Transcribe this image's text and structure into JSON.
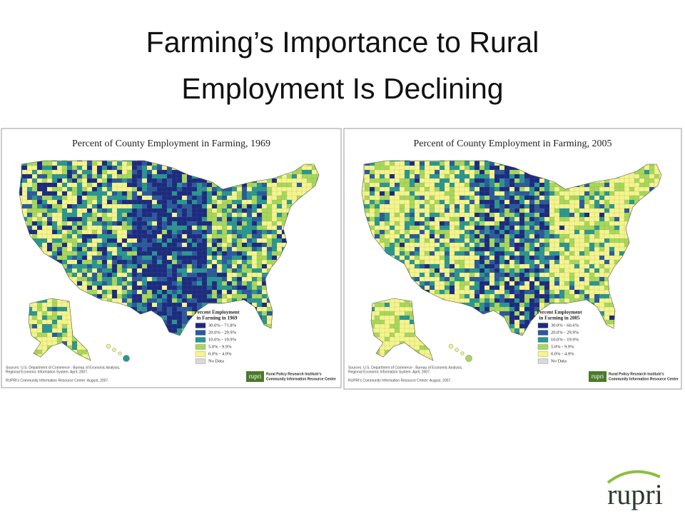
{
  "title": {
    "lines": [
      "Farming’s Importance to Rural",
      "Employment Is Declining"
    ]
  },
  "maps": [
    {
      "title": "Percent of County Employment in Farming, 1969",
      "legend": {
        "title": [
          "Percent Employment",
          "in Farming in 1969"
        ],
        "items": [
          {
            "label": "30.0% - 71.8%",
            "color": "#1c2a80"
          },
          {
            "label": "20.0% - 29.9%",
            "color": "#2b5a9c"
          },
          {
            "label": "10.0% - 19.9%",
            "color": "#2a9690"
          },
          {
            "label": "5.0% - 9.9%",
            "color": "#a8d85a"
          },
          {
            "label": "0.0% - 4.9%",
            "color": "#f6f58c"
          },
          {
            "label": "No Data",
            "color": "#d9d9d9"
          }
        ]
      },
      "sources": [
        "Sources: U.S. Department of Commerce - Bureau of Economic Analysis,",
        "Regional Economic Information System.  April, 2007.",
        "RUPRI's Community Information Resource Center: August, 2007."
      ],
      "badge": {
        "logo": "rupri",
        "lines": [
          "Rural Policy Research Institute's",
          "Community Information Resource Center"
        ]
      }
    },
    {
      "title": "Percent of County Employment in Farming, 2005",
      "legend": {
        "title": [
          "Percent Employment",
          "in Farming in 2005"
        ],
        "items": [
          {
            "label": "30.0% - 60.6%",
            "color": "#1c2a80"
          },
          {
            "label": "20.0% - 29.9%",
            "color": "#2b5a9c"
          },
          {
            "label": "10.0% - 19.9%",
            "color": "#2a9690"
          },
          {
            "label": "5.0% - 9.9%",
            "color": "#a8d85a"
          },
          {
            "label": "0.0% - 4.9%",
            "color": "#f6f58c"
          },
          {
            "label": "No Data",
            "color": "#d9d9d9"
          }
        ]
      },
      "sources": [
        "Sources: U.S. Department of Commerce - Bureau of Economic Analysis,",
        "Regional Economic Information System.  April, 2007.",
        "RUPRI's Community Information Resource Center: August, 2007."
      ],
      "badge": {
        "logo": "rupri",
        "lines": [
          "Rural Policy Research Institute's",
          "Community Information Resource Center"
        ]
      }
    }
  ],
  "logo": "rupri"
}
